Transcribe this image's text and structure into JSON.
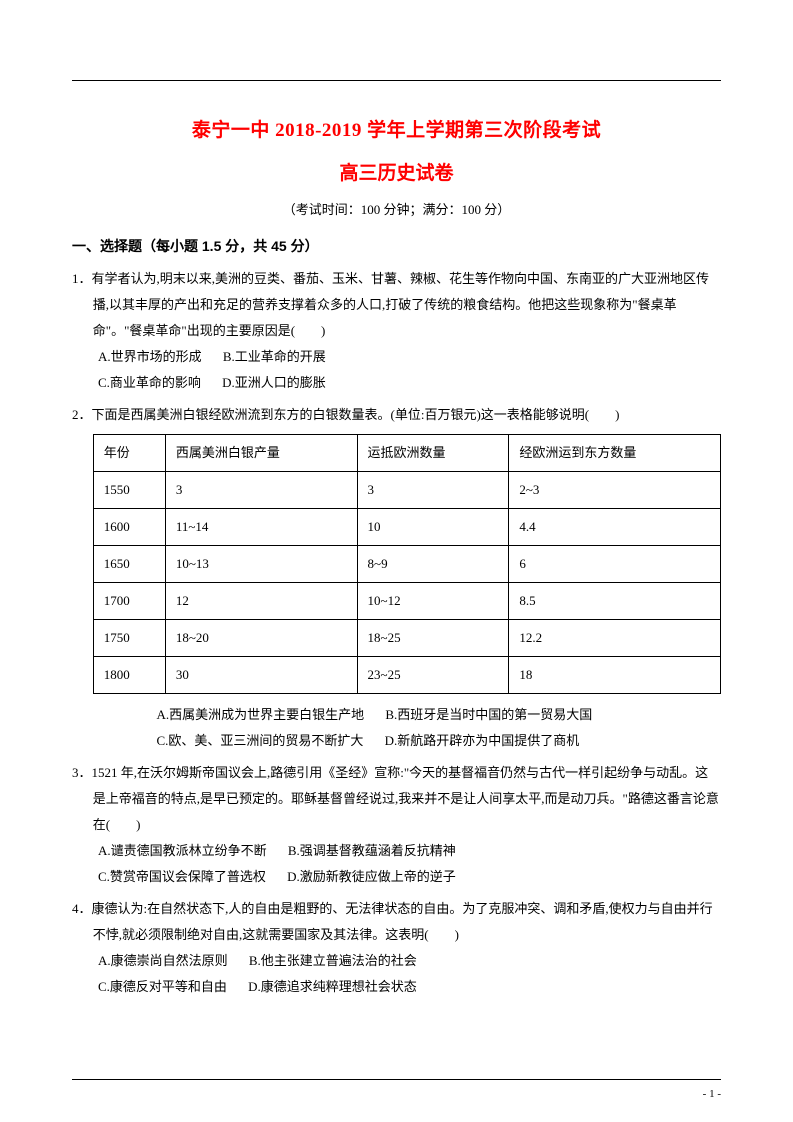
{
  "title_main": "泰宁一中 2018-2019 学年上学期第三次阶段考试",
  "title_sub": "高三历史试卷",
  "exam_info": "（考试时间：100 分钟；满分：100 分）",
  "section1_head": "一、选择题（每小题 1.5 分，共 45 分）",
  "q1": {
    "num": "1．",
    "stem": "有学者认为,明末以来,美洲的豆类、番茄、玉米、甘薯、辣椒、花生等作物向中国、东南亚的广大亚洲地区传播,以其丰厚的产出和充足的营养支撑着众多的人口,打破了传统的粮食结构。他把这些现象称为\"餐桌革命\"。\"餐桌革命\"出现的主要原因是(　　)",
    "A": "A.世界市场的形成",
    "B": "B.工业革命的开展",
    "C": "C.商业革命的影响",
    "D": "D.亚洲人口的膨胀"
  },
  "q2": {
    "num": "2．",
    "stem": "下面是西属美洲白银经欧洲流到东方的白银数量表。(单位:百万银元)这一表格能够说明(　　)",
    "table": {
      "columns": [
        "年份",
        "西属美洲白银产量",
        "运抵欧洲数量",
        "经欧洲运到东方数量"
      ],
      "rows": [
        [
          "1550",
          "3",
          "3",
          "2~3"
        ],
        [
          "1600",
          "11~14",
          "10",
          "4.4"
        ],
        [
          "1650",
          "10~13",
          "8~9",
          "6"
        ],
        [
          "1700",
          "12",
          "10~12",
          "8.5"
        ],
        [
          "1750",
          "18~20",
          "18~25",
          "12.2"
        ],
        [
          "1800",
          "30",
          "23~25",
          "18"
        ]
      ]
    },
    "A": "A.西属美洲成为世界主要白银生产地",
    "B": "B.西班牙是当时中国的第一贸易大国",
    "C": "C.欧、美、亚三洲间的贸易不断扩大",
    "D": "D.新航路开辟亦为中国提供了商机"
  },
  "q3": {
    "num": "3．",
    "stem": "1521 年,在沃尔姆斯帝国议会上,路德引用《圣经》宣称:\"今天的基督福音仍然与古代一样引起纷争与动乱。这是上帝福音的特点,是早已预定的。耶稣基督曾经说过,我来并不是让人间享太平,而是动刀兵。\"路德这番言论意在(　　)",
    "A": "A.谴责德国教派林立纷争不断",
    "B": "B.强调基督教蕴涵着反抗精神",
    "C": "C.赞赏帝国议会保障了普选权",
    "D": "D.激励新教徒应做上帝的逆子"
  },
  "q4": {
    "num": "4．",
    "stem": "康德认为:在自然状态下,人的自由是粗野的、无法律状态的自由。为了克服冲突、调和矛盾,使权力与自由并行不悖,就必须限制绝对自由,这就需要国家及其法律。这表明(　　)",
    "A": "A.康德崇尚自然法原则",
    "B": "B.他主张建立普遍法治的社会",
    "C": "C.康德反对平等和自由",
    "D": "D.康德追求纯粹理想社会状态"
  },
  "page_number": "- 1 -"
}
